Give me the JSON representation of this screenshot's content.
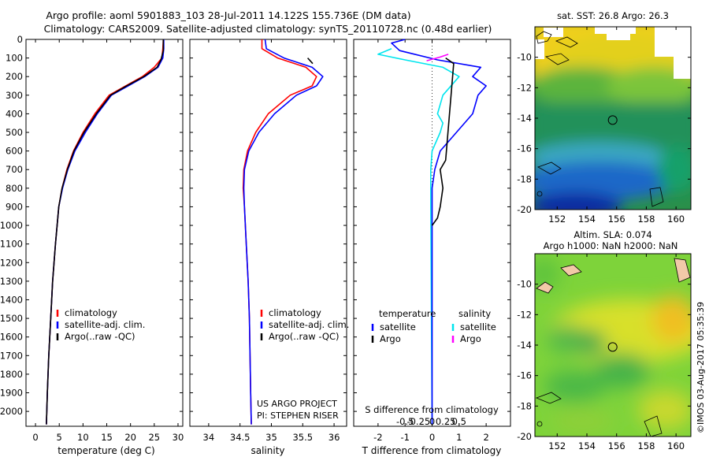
{
  "header": {
    "title_line1": "Argo profile: aoml 5901883_103 28-Jul-2011 14.122S 155.736E (DM data)",
    "title_line2": "Climatology: CARS2009. Satellite-adjusted climatology: synTS_20110728.nc (0.48d earlier)"
  },
  "side_label": "©IMOS 03-Aug-2017 05:35:39",
  "chart_data": [
    {
      "id": "temperature",
      "type": "line",
      "xlabel": "temperature (deg C)",
      "ylabel": "",
      "xlim": [
        -2,
        31
      ],
      "ylim": [
        2080,
        0
      ],
      "xticks": [
        0,
        5,
        10,
        15,
        20,
        25,
        30
      ],
      "xtick_labels": [
        "0",
        "5",
        "10",
        "15",
        "20",
        "25",
        "30"
      ],
      "yticks": [
        0,
        100,
        200,
        300,
        400,
        500,
        600,
        700,
        800,
        900,
        1000,
        1100,
        1200,
        1300,
        1400,
        1500,
        1600,
        1700,
        1800,
        1900,
        2000
      ],
      "ytick_labels": [
        "0",
        "100",
        "200",
        "300",
        "400",
        "500",
        "600",
        "700",
        "800",
        "900",
        "1000",
        "1100",
        "1200",
        "1300",
        "1400",
        "1500",
        "1600",
        "1700",
        "1800",
        "1900",
        "2000"
      ],
      "legend": [
        "climatology",
        "satellite-adj. clim.",
        "Argo(..raw -QC)"
      ],
      "colors": [
        "#ff0000",
        "#0000ff",
        "#000000"
      ],
      "series": [
        {
          "name": "climatology",
          "x": [
            26.9,
            26.8,
            26.6,
            25.0,
            22.5,
            19.0,
            15.5,
            12.5,
            10.0,
            8.0,
            6.6,
            5.6,
            4.9,
            4.2,
            3.6,
            3.2,
            2.8,
            2.5,
            2.3
          ],
          "y": [
            0,
            50,
            100,
            150,
            200,
            250,
            300,
            400,
            500,
            600,
            700,
            800,
            900,
            1100,
            1300,
            1500,
            1700,
            1900,
            2070
          ]
        },
        {
          "name": "satellite-adj. clim.",
          "x": [
            27.0,
            27.0,
            26.8,
            25.8,
            23.0,
            19.5,
            16.0,
            13.0,
            10.5,
            8.3,
            6.8,
            5.7,
            4.9,
            4.2,
            3.6,
            3.2,
            2.8,
            2.5,
            2.3
          ],
          "y": [
            0,
            50,
            100,
            150,
            200,
            250,
            300,
            400,
            500,
            600,
            700,
            800,
            900,
            1100,
            1300,
            1500,
            1700,
            1900,
            2070
          ]
        },
        {
          "name": "Argo(..raw -QC)",
          "x": [
            26.9,
            26.9,
            26.4,
            25.6,
            22.8,
            19.2,
            15.8,
            12.8,
            10.2,
            8.1,
            6.7,
            5.6,
            4.9,
            4.2,
            3.6,
            3.2,
            2.8,
            2.5,
            2.3
          ],
          "y": [
            0,
            60,
            110,
            150,
            200,
            250,
            300,
            400,
            500,
            600,
            700,
            800,
            900,
            1100,
            1300,
            1500,
            1700,
            1900,
            2070
          ]
        }
      ]
    },
    {
      "id": "salinity",
      "type": "line",
      "xlabel": "salinity",
      "xlim": [
        33.7,
        36.2
      ],
      "ylim": [
        2080,
        0
      ],
      "xticks": [
        34,
        34.5,
        35,
        35.5,
        36
      ],
      "xtick_labels": [
        "34",
        "34.5",
        "35",
        "35.5",
        "36"
      ],
      "legend": [
        "climatology",
        "satellite-adj. clim.",
        "Argo(..raw -QC)"
      ],
      "colors": [
        "#ff0000",
        "#0000ff",
        "#000000"
      ],
      "annotation": [
        "US ARGO PROJECT",
        "PI: STEPHEN RISER"
      ],
      "series": [
        {
          "name": "climatology",
          "x": [
            34.85,
            34.85,
            35.1,
            35.55,
            35.72,
            35.65,
            35.3,
            34.95,
            34.75,
            34.62,
            34.56,
            34.55,
            34.57,
            34.6,
            34.63,
            34.65,
            34.66,
            34.67,
            34.68
          ],
          "y": [
            0,
            50,
            100,
            150,
            200,
            250,
            300,
            400,
            500,
            600,
            700,
            800,
            900,
            1100,
            1300,
            1500,
            1700,
            1900,
            2070
          ]
        },
        {
          "name": "satellite-adj. clim.",
          "x": [
            34.9,
            34.92,
            35.2,
            35.65,
            35.82,
            35.72,
            35.4,
            35.05,
            34.8,
            34.64,
            34.57,
            34.56,
            34.57,
            34.6,
            34.63,
            34.65,
            34.66,
            34.67,
            34.68
          ],
          "y": [
            0,
            50,
            100,
            150,
            200,
            250,
            300,
            400,
            500,
            600,
            700,
            800,
            900,
            1100,
            1300,
            1500,
            1700,
            1900,
            2070
          ]
        },
        {
          "name": "Argo(..raw -QC)",
          "x": [
            35.58,
            35.66
          ],
          "y": [
            100,
            130
          ]
        }
      ]
    },
    {
      "id": "difference",
      "type": "line",
      "xlabel": "T difference from climatology",
      "xlabel2": "S difference from climatology",
      "xlim": [
        -2.9,
        2.9
      ],
      "ylim": [
        2080,
        0
      ],
      "xticks": [
        -2,
        -1,
        0,
        1,
        2
      ],
      "xtick_labels": [
        "-2",
        "-1",
        "0",
        "1",
        "2"
      ],
      "xticks2": [
        -1,
        -0.5,
        0,
        0.5,
        1
      ],
      "xtick_labels2": [
        "-0.5",
        "-0.25",
        "0",
        "0.25",
        "0.5"
      ],
      "legend_groups": [
        {
          "heading": "temperature",
          "items": [
            "satellite",
            "Argo"
          ],
          "colors": [
            "#0000ff",
            "#000000"
          ]
        },
        {
          "heading": "salinity",
          "items": [
            "satellite",
            "Argo"
          ],
          "colors": [
            "#00e5ee",
            "#ff00ff"
          ]
        }
      ],
      "series": [
        {
          "name": "T satellite",
          "x": [
            -1.0,
            -1.5,
            -1.2,
            0.2,
            1.8,
            1.5,
            2.0,
            1.7,
            1.5,
            0.9,
            0.3,
            0.1,
            0.0,
            0.0,
            0.0,
            0.0,
            0.0,
            0.0,
            0.0
          ],
          "y": [
            0,
            20,
            60,
            110,
            150,
            200,
            250,
            300,
            400,
            500,
            600,
            700,
            800,
            900,
            1100,
            1300,
            1500,
            1700,
            2070
          ]
        },
        {
          "name": "T Argo",
          "x": [
            0.5,
            0.8,
            0.5,
            0.3,
            0.4,
            0.3,
            0.2,
            0.0
          ],
          "y": [
            100,
            130,
            650,
            700,
            800,
            900,
            960,
            1000
          ]
        },
        {
          "name": "S satellite",
          "x": [
            -1.5,
            -2.0,
            -1.0,
            0.4,
            1.0,
            0.4,
            0.2,
            0.4,
            0.3,
            0.0,
            -0.05,
            -0.05,
            0.0
          ],
          "y": [
            50,
            80,
            110,
            150,
            200,
            300,
            400,
            450,
            500,
            600,
            700,
            900,
            2070
          ]
        },
        {
          "name": "S Argo",
          "x": [
            -0.2,
            0.3,
            0.6
          ],
          "y": [
            115,
            95,
            80
          ]
        }
      ]
    },
    {
      "id": "sst_map",
      "type": "heatmap",
      "title": "sat. SST: 26.8  Argo: 26.3",
      "xlim": [
        150.5,
        161
      ],
      "ylim": [
        -20,
        -8
      ],
      "xticks": [
        152,
        154,
        156,
        158,
        160
      ],
      "xtick_labels": [
        "152",
        "154",
        "156",
        "158",
        "160"
      ],
      "yticks": [
        -10,
        -12,
        -14,
        -16,
        -18,
        -20
      ],
      "ytick_labels": [
        "-10",
        "-12",
        "-14",
        "-16",
        "-18",
        "-20"
      ],
      "marker": {
        "lon": 155.736,
        "lat": -14.122
      }
    },
    {
      "id": "sla_map",
      "type": "heatmap",
      "title": "Altim. SLA: 0.074",
      "subtitle": "Argo h1000: NaN h2000: NaN",
      "xlim": [
        150.5,
        161
      ],
      "ylim": [
        -20,
        -8
      ],
      "xticks": [
        152,
        154,
        156,
        158,
        160
      ],
      "xtick_labels": [
        "152",
        "154",
        "156",
        "158",
        "160"
      ],
      "yticks": [
        -10,
        -12,
        -14,
        -16,
        -18,
        -20
      ],
      "ytick_labels": [
        "-10",
        "-12",
        "-14",
        "-16",
        "-18",
        "-20"
      ],
      "marker": {
        "lon": 155.736,
        "lat": -14.122
      }
    }
  ]
}
